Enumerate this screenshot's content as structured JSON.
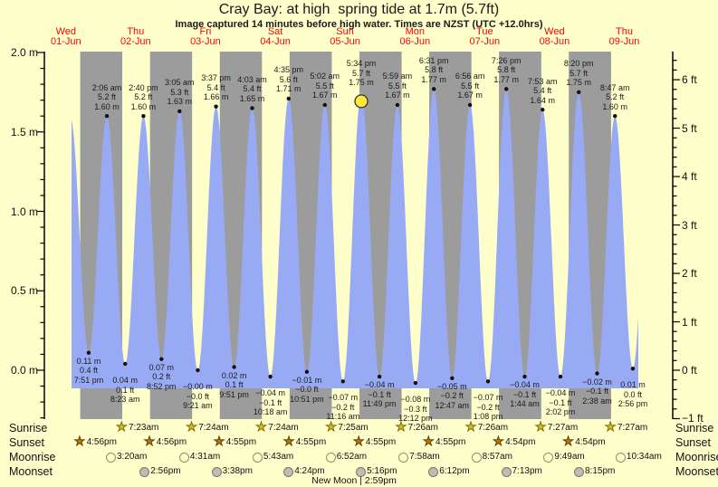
{
  "title": "Cray Bay: at high  spring tide at 1.7m (5.7ft)",
  "subtitle": "Image captured 14 minutes before high water. Times are NZST (UTC +12.0hrs)",
  "days": [
    {
      "weekday": "Wed",
      "date": "01-Jun"
    },
    {
      "weekday": "Thu",
      "date": "02-Jun"
    },
    {
      "weekday": "Fri",
      "date": "03-Jun"
    },
    {
      "weekday": "Sat",
      "date": "04-Jun"
    },
    {
      "weekday": "Sun",
      "date": "05-Jun"
    },
    {
      "weekday": "Mon",
      "date": "06-Jun"
    },
    {
      "weekday": "Tue",
      "date": "07-Jun"
    },
    {
      "weekday": "Wed",
      "date": "08-Jun"
    },
    {
      "weekday": "Thu",
      "date": "09-Jun"
    }
  ],
  "colors": {
    "background": "#FFFFCC",
    "night_band": "#9C9C9C",
    "day_band": "#FFFFCC",
    "tide_fill": "#99AAF5",
    "day_label_red": "#FF0000",
    "now_marker": "#FFE93B",
    "sunrise_star": "#D2B92E",
    "sunset_star": "#B5760B",
    "moonrise_circle": "#FFFFCE",
    "moonset_circle": "#BDBDB2"
  },
  "chart_data": {
    "type": "area",
    "title": "Cray Bay: at high  spring tide at 1.7m (5.7ft)",
    "x_range_days": [
      "01-Jun",
      "09-Jun"
    ],
    "y_axis_left": {
      "unit": "m",
      "tick_labels": [
        "2.0 m",
        "1.5 m",
        "1.0 m",
        "0.5 m",
        "0.0 m"
      ],
      "tick_values": [
        2.0,
        1.5,
        1.0,
        0.5,
        0.0
      ],
      "range": [
        -0.305,
        2.0
      ]
    },
    "y_axis_right": {
      "unit": "ft",
      "tick_labels": [
        "6 ft",
        "5 ft",
        "4 ft",
        "3 ft",
        "2 ft",
        "1 ft",
        "0 ft",
        "−1 ft"
      ],
      "tick_values": [
        6,
        5,
        4,
        3,
        2,
        1,
        0,
        -1
      ],
      "range": [
        -1,
        6.6
      ]
    },
    "high_tides": [
      {
        "day": 1,
        "time": "2:06 am",
        "ft": "5.2 ft",
        "m": "1.60 m",
        "val": 1.6
      },
      {
        "day": 1,
        "time": "2:40 pm",
        "ft": "5.2 ft",
        "m": "1.60 m",
        "val": 1.6
      },
      {
        "day": 2,
        "time": "3:05 am",
        "ft": "5.3 ft",
        "m": "1.63 m",
        "val": 1.63
      },
      {
        "day": 2,
        "time": "3:37 pm",
        "ft": "5.4 ft",
        "m": "1.66 m",
        "val": 1.66
      },
      {
        "day": 3,
        "time": "4:03 am",
        "ft": "5.4 ft",
        "m": "1.65 m",
        "val": 1.65
      },
      {
        "day": 3,
        "time": "4:35 pm",
        "ft": "5.6 ft",
        "m": "1.71 m",
        "val": 1.71
      },
      {
        "day": 4,
        "time": "5:02 am",
        "ft": "5.5 ft",
        "m": "1.67 m",
        "val": 1.67
      },
      {
        "day": 4,
        "time": "5:34 pm",
        "ft": "5.7 ft",
        "m": "1.75 m",
        "val": 1.75,
        "now": true
      },
      {
        "day": 5,
        "time": "5:59 am",
        "ft": "5.5 ft",
        "m": "1.67 m",
        "val": 1.67
      },
      {
        "day": 5,
        "time": "6:31 pm",
        "ft": "5.8 ft",
        "m": "1.77 m",
        "val": 1.77
      },
      {
        "day": 6,
        "time": "6:56 am",
        "ft": "5.5 ft",
        "m": "1.67 m",
        "val": 1.67
      },
      {
        "day": 6,
        "time": "7:26 pm",
        "ft": "5.8 ft",
        "m": "1.77 m",
        "val": 1.77
      },
      {
        "day": 7,
        "time": "7:53 am",
        "ft": "5.4 ft",
        "m": "1.64 m",
        "val": 1.64
      },
      {
        "day": 7,
        "time": "8:20 pm",
        "ft": "5.7 ft",
        "m": "1.75 m",
        "val": 1.75
      },
      {
        "day": 8,
        "time": "8:47 am",
        "ft": "5.2 ft",
        "m": "1.60 m",
        "val": 1.6
      }
    ],
    "low_tides": [
      {
        "day": 0,
        "time": "7:51 pm",
        "m": "0.11 m",
        "ft": "0.4 ft",
        "val": 0.11
      },
      {
        "day": 1,
        "time": "8:23 am",
        "m": "0.04 m",
        "ft": "0.1 ft",
        "val": 0.04
      },
      {
        "day": 1,
        "time": "8:52 pm",
        "m": "0.07 m",
        "ft": "0.2 ft",
        "val": 0.07
      },
      {
        "day": 2,
        "time": "9:21 am",
        "m": "−0.00 m",
        "ft": "−0.0 ft",
        "val": 0.0
      },
      {
        "day": 2,
        "time": "9:51 pm",
        "m": "0.02 m",
        "ft": "0.1 ft",
        "val": 0.02
      },
      {
        "day": 3,
        "time": "10:18 am",
        "m": "−0.04 m",
        "ft": "−0.1 ft",
        "val": -0.04
      },
      {
        "day": 3,
        "time": "10:51 pm",
        "m": "−0.01 m",
        "ft": "−0.0 ft",
        "val": -0.01
      },
      {
        "day": 4,
        "time": "11:16 am",
        "m": "−0.07 m",
        "ft": "−0.2 ft",
        "val": -0.07
      },
      {
        "day": 4,
        "time": "11:49 pm",
        "m": "−0.04 m",
        "ft": "−0.1 ft",
        "val": -0.04
      },
      {
        "day": 5,
        "time": "12:12 pm",
        "m": "−0.08 m",
        "ft": "−0.3 ft",
        "val": -0.08
      },
      {
        "day": 6,
        "time": "12:47 am",
        "m": "−0.05 m",
        "ft": "−0.2 ft",
        "val": -0.05
      },
      {
        "day": 6,
        "time": "1:08 pm",
        "m": "−0.07 m",
        "ft": "−0.2 ft",
        "val": -0.07
      },
      {
        "day": 7,
        "time": "1:44 am",
        "m": "−0.04 m",
        "ft": "−0.1 ft",
        "val": -0.04
      },
      {
        "day": 7,
        "time": "2:02 pm",
        "m": "−0.04 m",
        "ft": "−0.1 ft",
        "val": -0.04
      },
      {
        "day": 8,
        "time": "2:38 am",
        "m": "−0.02 m",
        "ft": "−0.1 ft",
        "val": -0.02
      },
      {
        "day": 8,
        "time": "2:56 pm",
        "m": "0.01 m",
        "ft": "0.0 ft",
        "val": 0.01
      }
    ],
    "now_note": "yellow marker on 5:34 pm high (image captured 14 minutes before high water)"
  },
  "astro": {
    "rows": [
      {
        "label": "Sunrise",
        "icon": "sunrise-star",
        "entries": [
          {
            "day": 1,
            "time": "7:23am"
          },
          {
            "day": 2,
            "time": "7:24am"
          },
          {
            "day": 3,
            "time": "7:24am"
          },
          {
            "day": 4,
            "time": "7:25am"
          },
          {
            "day": 5,
            "time": "7:26am"
          },
          {
            "day": 6,
            "time": "7:26am"
          },
          {
            "day": 7,
            "time": "7:27am"
          },
          {
            "day": 8,
            "time": "7:27am"
          }
        ]
      },
      {
        "label": "Sunset",
        "icon": "sunset-star",
        "entries": [
          {
            "day": 0,
            "time": "4:56pm"
          },
          {
            "day": 1,
            "time": "4:56pm"
          },
          {
            "day": 2,
            "time": "4:55pm"
          },
          {
            "day": 3,
            "time": "4:55pm"
          },
          {
            "day": 4,
            "time": "4:55pm"
          },
          {
            "day": 5,
            "time": "4:55pm"
          },
          {
            "day": 6,
            "time": "4:54pm"
          },
          {
            "day": 7,
            "time": "4:54pm"
          }
        ]
      },
      {
        "label": "Moonrise",
        "icon": "moonrise-circle",
        "entries": [
          {
            "day": 1,
            "time": "3:20am"
          },
          {
            "day": 2,
            "time": "4:31am"
          },
          {
            "day": 3,
            "time": "5:43am"
          },
          {
            "day": 4,
            "time": "6:52am"
          },
          {
            "day": 5,
            "time": "7:58am"
          },
          {
            "day": 6,
            "time": "8:57am"
          },
          {
            "day": 7,
            "time": "9:49am"
          },
          {
            "day": 8,
            "time": "10:34am"
          }
        ]
      },
      {
        "label": "Moonset",
        "icon": "moonset-circle",
        "entries": [
          {
            "day": 1,
            "time": "2:56pm"
          },
          {
            "day": 2,
            "time": "3:38pm"
          },
          {
            "day": 3,
            "time": "4:24pm"
          },
          {
            "day": 4,
            "time": "5:16pm"
          },
          {
            "day": 5,
            "time": "6:12pm"
          },
          {
            "day": 6,
            "time": "7:13pm"
          },
          {
            "day": 7,
            "time": "8:15pm"
          }
        ]
      }
    ],
    "new_moon": "New Moon | 2:59pm"
  }
}
